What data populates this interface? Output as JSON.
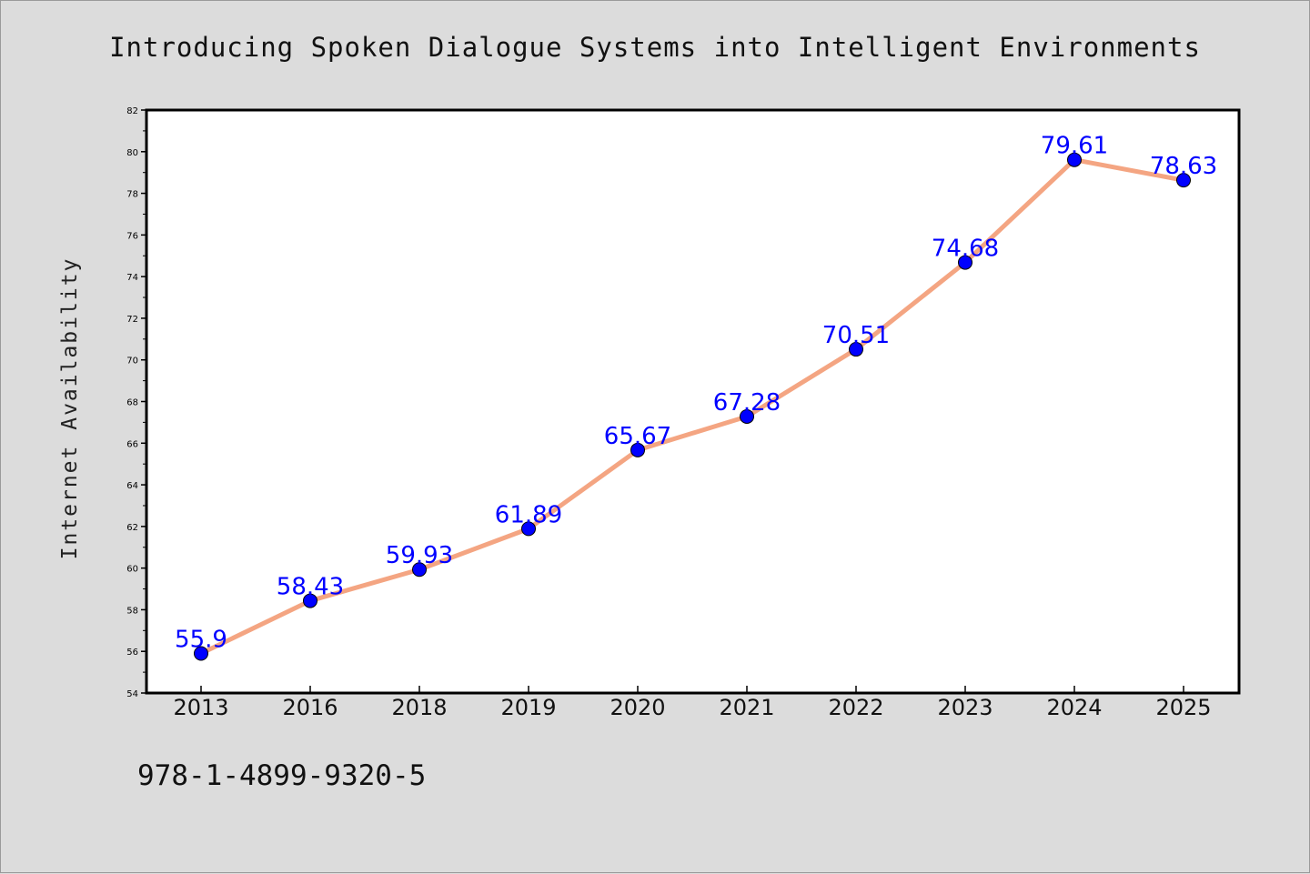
{
  "chart_data": {
    "type": "line",
    "title": "Introducing Spoken Dialogue Systems into Intelligent Environments",
    "xlabel": "",
    "ylabel": "Internet Availability",
    "categories": [
      "2013",
      "2016",
      "2018",
      "2019",
      "2020",
      "2021",
      "2022",
      "2023",
      "2024",
      "2025"
    ],
    "values": [
      55.9,
      58.43,
      59.93,
      61.89,
      65.67,
      67.28,
      70.51,
      74.68,
      79.61,
      78.63
    ],
    "data_labels": [
      "55.9",
      "58.43",
      "59.93",
      "61.89",
      "65.67",
      "67.28",
      "70.51",
      "74.68",
      "79.61",
      "78.63"
    ],
    "ylim": [
      54,
      82
    ],
    "yticks": [
      "54",
      "56",
      "58",
      "60",
      "62",
      "64",
      "66",
      "68",
      "70",
      "72",
      "74",
      "76",
      "78",
      "80",
      "82"
    ],
    "grid": false,
    "legend": "none",
    "line_color": "#f4a582",
    "marker_color": "#0000ff",
    "label_color": "#0000ff"
  },
  "footer": {
    "isbn": "978-1-4899-9320-5"
  }
}
